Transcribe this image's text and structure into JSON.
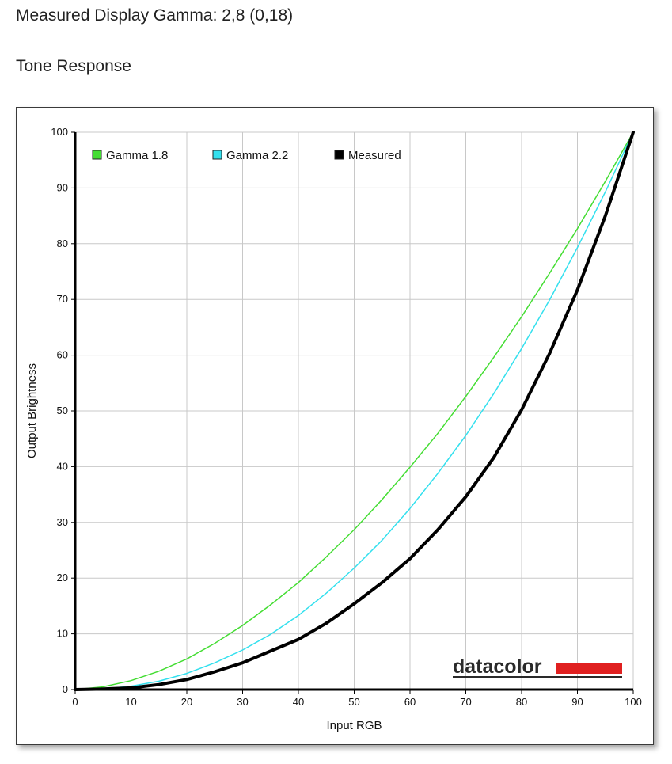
{
  "header": {
    "measured_gamma": "Measured Display Gamma: 2,8 (0,18)",
    "section_title": "Tone Response"
  },
  "logo": {
    "text": "datacolor",
    "accent_color": "#e02020"
  },
  "chart_data": {
    "type": "line",
    "xlabel": "Input RGB",
    "ylabel": "Output Brightness",
    "xlim": [
      0,
      100
    ],
    "ylim": [
      0,
      100
    ],
    "xticks": [
      0,
      10,
      20,
      30,
      40,
      50,
      60,
      70,
      80,
      90,
      100
    ],
    "yticks": [
      0,
      10,
      20,
      30,
      40,
      50,
      60,
      70,
      80,
      90,
      100
    ],
    "grid": true,
    "legend_position": "top-left",
    "series": [
      {
        "name": "Gamma 1.8",
        "color": "#44dd33",
        "x": [
          0,
          5,
          10,
          15,
          20,
          25,
          30,
          35,
          40,
          45,
          50,
          55,
          60,
          65,
          70,
          75,
          80,
          85,
          90,
          95,
          100
        ],
        "y": [
          0,
          0.5,
          1.6,
          3.3,
          5.5,
          8.3,
          11.5,
          15.2,
          19.2,
          23.8,
          28.7,
          34.1,
          39.9,
          46.0,
          52.6,
          59.6,
          66.9,
          74.7,
          82.7,
          91.2,
          100
        ]
      },
      {
        "name": "Gamma 2.2",
        "color": "#33e0ee",
        "x": [
          0,
          5,
          10,
          15,
          20,
          25,
          30,
          35,
          40,
          45,
          50,
          55,
          60,
          65,
          70,
          75,
          80,
          85,
          90,
          95,
          100
        ],
        "y": [
          0,
          0.1,
          0.6,
          1.5,
          2.9,
          4.8,
          7.1,
          9.9,
          13.3,
          17.3,
          21.8,
          26.8,
          32.5,
          38.8,
          45.6,
          53.1,
          61.2,
          69.9,
          79.3,
          89.3,
          100
        ]
      },
      {
        "name": "Measured",
        "color": "#000000",
        "x": [
          0,
          5,
          10,
          15,
          20,
          25,
          30,
          35,
          40,
          45,
          50,
          55,
          60,
          65,
          70,
          75,
          80,
          85,
          90,
          95,
          100
        ],
        "y": [
          0,
          0.1,
          0.3,
          0.9,
          1.8,
          3.2,
          4.8,
          6.9,
          9.0,
          11.9,
          15.4,
          19.2,
          23.5,
          28.7,
          34.6,
          41.6,
          50.2,
          60.3,
          71.7,
          85.0,
          100
        ]
      }
    ]
  }
}
